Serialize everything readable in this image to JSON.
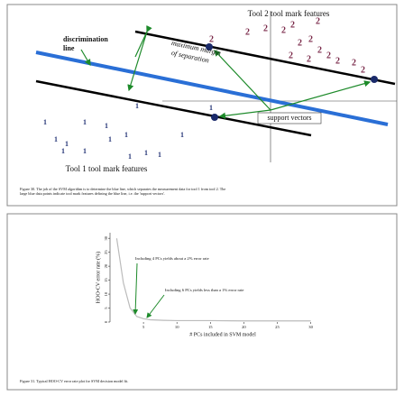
{
  "figure30": {
    "tool2_label": "Tool 2 tool mark features",
    "tool1_label": "Tool 1 tool mark features",
    "discrimination_label": "discrimination line",
    "margin_label_1": "maximum margin",
    "margin_label_2": "of separation",
    "support_vectors_label": "support vectors",
    "class2_glyph": "2",
    "class1_glyph": "1",
    "caption": "Figure 30. The job of the SVM algorithm is to determine the blue line, which separates the measurement data for tool 1 from tool 2. The large blue data points indicate tool mark features defining the blue line, i.e. the 'support vectors'."
  },
  "chart_data": {
    "type": "line",
    "xlabel": "# PCs included in SVM model",
    "ylabel": "HOO-CV error rate (%)",
    "x": [
      1,
      2,
      3,
      4,
      5,
      6,
      8,
      10,
      15,
      20,
      25,
      30
    ],
    "series": [
      {
        "values": [
          30,
          14,
          5,
          2,
          1.2,
          0.8,
          0.6,
          0.5,
          0.5,
          0.4,
          0.4,
          0.4
        ],
        "color": "#bbbbbb"
      }
    ],
    "xlim": [
      0,
      31
    ],
    "ylim": [
      0,
      32
    ],
    "xticks": [
      5,
      10,
      15,
      20,
      25,
      30
    ],
    "yticks": [
      0,
      5,
      10,
      15,
      20,
      25,
      30
    ],
    "annotations": [
      "Including 4 PCs yields about a 2% error rate",
      "Including 6 PCs yields less than a 1% error rate"
    ],
    "caption": "Figure 31. Typical HOO-CV error rate plot for SVM decision model fit."
  }
}
